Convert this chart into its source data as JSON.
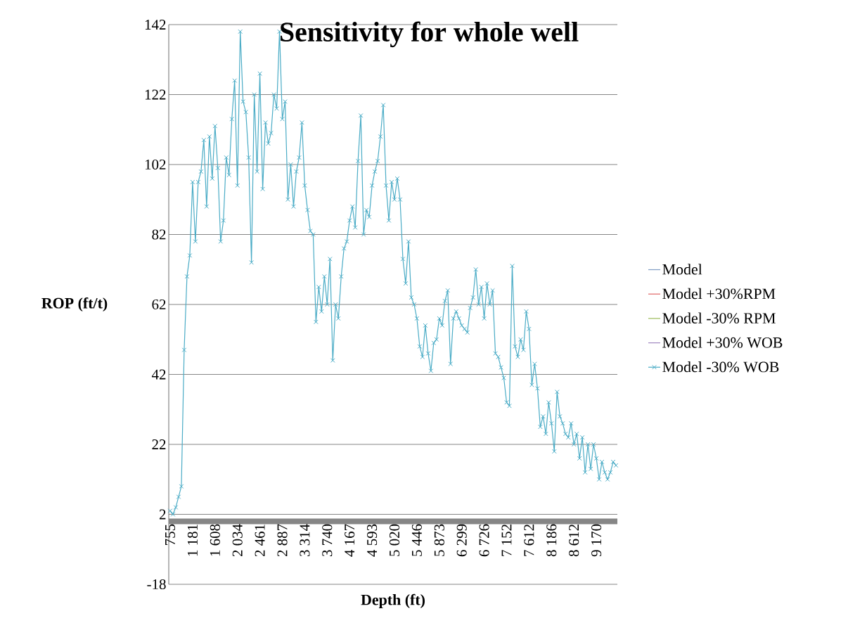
{
  "chart_data": {
    "type": "line",
    "title": "Sensitivity for whole well",
    "xlabel": "Depth (ft)",
    "ylabel": "ROP (ft/t)",
    "categories": [
      "755",
      null,
      null,
      null,
      null,
      null,
      null,
      null,
      "1 181",
      null,
      null,
      null,
      null,
      null,
      null,
      null,
      "1 608",
      null,
      null,
      null,
      null,
      null,
      null,
      null,
      "2 034",
      null,
      null,
      null,
      null,
      null,
      null,
      null,
      "2 461",
      null,
      null,
      null,
      null,
      null,
      null,
      null,
      "2 887",
      null,
      null,
      null,
      null,
      null,
      null,
      null,
      "3 314",
      null,
      null,
      null,
      null,
      null,
      null,
      null,
      "3 740",
      null,
      null,
      null,
      null,
      null,
      null,
      null,
      "4 167",
      null,
      null,
      null,
      null,
      null,
      null,
      null,
      "4 593",
      null,
      null,
      null,
      null,
      null,
      null,
      null,
      "5 020",
      null,
      null,
      null,
      null,
      null,
      null,
      null,
      "5 446",
      null,
      null,
      null,
      null,
      null,
      null,
      null,
      "5 873",
      null,
      null,
      null,
      null,
      null,
      null,
      null,
      "6 299",
      null,
      null,
      null,
      null,
      null,
      null,
      null,
      "6 726",
      null,
      null,
      null,
      null,
      null,
      null,
      null,
      "7 152",
      null,
      null,
      null,
      null,
      null,
      null,
      null,
      "7 612",
      null,
      null,
      null,
      null,
      null,
      null,
      null,
      "8 186",
      null,
      null,
      null,
      null,
      null,
      null,
      null,
      "8 612",
      null,
      null,
      null,
      null,
      null,
      null,
      null,
      "9 170",
      null,
      null,
      null,
      null,
      null,
      null,
      null
    ],
    "series": [
      {
        "name": "Model",
        "color": "#7f9cc4",
        "marker": "none",
        "values": [
          null,
          null,
          null,
          null,
          null,
          null,
          null,
          null,
          null,
          null,
          null,
          null,
          null,
          null,
          null,
          null,
          null,
          null,
          null,
          null,
          null,
          null,
          null,
          null,
          null,
          null,
          null,
          null,
          null,
          null,
          null,
          null,
          null,
          null,
          null,
          null,
          null,
          null,
          null,
          null,
          null,
          null,
          null,
          null,
          null,
          null,
          null,
          null,
          null,
          null,
          null,
          null,
          null,
          null,
          null,
          null,
          null,
          null,
          null,
          null,
          null,
          null,
          null,
          null,
          null,
          null,
          null,
          null,
          null,
          null,
          null,
          null,
          null,
          null,
          null,
          null,
          null,
          null,
          null,
          null,
          null,
          null,
          null,
          null,
          null,
          null,
          null,
          null,
          null,
          null,
          null,
          null,
          null,
          null,
          null,
          null,
          null,
          null,
          null,
          null,
          null,
          null,
          null,
          null,
          null,
          null,
          null,
          null,
          null,
          null,
          null,
          null,
          null,
          null,
          null,
          null,
          null,
          null,
          null,
          null,
          null,
          null,
          null,
          null,
          null,
          null,
          null,
          null,
          null,
          null,
          null,
          null,
          null,
          null,
          null,
          null,
          null,
          null,
          null,
          null,
          null,
          null,
          null,
          null,
          null,
          null,
          null,
          null,
          null,
          null,
          null,
          null,
          null,
          null,
          null,
          null,
          null,
          null,
          null,
          null
        ]
      },
      {
        "name": "Model +30%RPM",
        "color": "#e06666",
        "marker": "none",
        "values": [
          null,
          null,
          null,
          null,
          null,
          null,
          null,
          null,
          null,
          null,
          null,
          null,
          null,
          null,
          null,
          null,
          null,
          null,
          null,
          null,
          null,
          null,
          null,
          null,
          null,
          null,
          null,
          null,
          null,
          null,
          null,
          null,
          null,
          null,
          null,
          null,
          null,
          null,
          null,
          null,
          null,
          null,
          null,
          null,
          null,
          null,
          null,
          null,
          null,
          null,
          null,
          null,
          null,
          null,
          null,
          null,
          null,
          null,
          null,
          null,
          null,
          null,
          null,
          null,
          null,
          null,
          null,
          null,
          null,
          null,
          null,
          null,
          null,
          null,
          null,
          null,
          null,
          null,
          null,
          null,
          null,
          null,
          null,
          null,
          null,
          null,
          null,
          null,
          null,
          null,
          null,
          null,
          null,
          null,
          null,
          null,
          null,
          null,
          null,
          null,
          null,
          null,
          null,
          null,
          null,
          null,
          null,
          null,
          null,
          null,
          null,
          null,
          null,
          null,
          null,
          null,
          null,
          null,
          null,
          null,
          null,
          null,
          null,
          null,
          null,
          null,
          null,
          null,
          null,
          null,
          null,
          null,
          null,
          null,
          null,
          null,
          null,
          null,
          null,
          null,
          null,
          null,
          null,
          null,
          null,
          null,
          null,
          null,
          null,
          null,
          null,
          null,
          null,
          null,
          null,
          null,
          null,
          null,
          null,
          null
        ]
      },
      {
        "name": "Model -30% RPM",
        "color": "#9bbb59",
        "marker": "none",
        "values": [
          null,
          null,
          null,
          null,
          null,
          null,
          null,
          null,
          null,
          null,
          null,
          null,
          null,
          null,
          null,
          null,
          null,
          null,
          null,
          null,
          null,
          null,
          null,
          null,
          null,
          null,
          null,
          null,
          null,
          null,
          null,
          null,
          null,
          null,
          null,
          null,
          null,
          null,
          null,
          null,
          null,
          null,
          null,
          null,
          null,
          null,
          null,
          null,
          null,
          null,
          null,
          null,
          null,
          null,
          null,
          null,
          null,
          null,
          null,
          null,
          null,
          null,
          null,
          null,
          null,
          null,
          null,
          null,
          null,
          null,
          null,
          null,
          null,
          null,
          null,
          null,
          null,
          null,
          null,
          null,
          null,
          null,
          null,
          null,
          null,
          null,
          null,
          null,
          null,
          null,
          null,
          null,
          null,
          null,
          null,
          null,
          null,
          null,
          null,
          null,
          null,
          null,
          null,
          null,
          null,
          null,
          null,
          null,
          null,
          null,
          null,
          null,
          null,
          null,
          null,
          null,
          null,
          null,
          null,
          null,
          null,
          null,
          null,
          null,
          null,
          null,
          null,
          null,
          null,
          null,
          null,
          null,
          null,
          null,
          null,
          null,
          null,
          null,
          null,
          null,
          null,
          null,
          null,
          null,
          null,
          null,
          null,
          null,
          null,
          null,
          null,
          null,
          null,
          null,
          null,
          null,
          null,
          null,
          null,
          null
        ]
      },
      {
        "name": "Model +30% WOB",
        "color": "#9f86c0",
        "marker": "none",
        "values": [
          null,
          null,
          null,
          null,
          null,
          null,
          null,
          null,
          null,
          null,
          null,
          null,
          null,
          null,
          null,
          null,
          null,
          null,
          null,
          null,
          null,
          null,
          null,
          null,
          null,
          null,
          null,
          null,
          null,
          null,
          null,
          null,
          null,
          null,
          null,
          null,
          null,
          null,
          null,
          null,
          null,
          null,
          null,
          null,
          null,
          null,
          null,
          null,
          null,
          null,
          null,
          null,
          null,
          null,
          null,
          null,
          null,
          null,
          null,
          null,
          null,
          null,
          null,
          null,
          null,
          null,
          null,
          null,
          null,
          null,
          null,
          null,
          null,
          null,
          null,
          null,
          null,
          null,
          null,
          null,
          null,
          null,
          null,
          null,
          null,
          null,
          null,
          null,
          null,
          null,
          null,
          null,
          null,
          null,
          null,
          null,
          null,
          null,
          null,
          null,
          null,
          null,
          null,
          null,
          null,
          null,
          null,
          null,
          null,
          null,
          null,
          null,
          null,
          null,
          null,
          null,
          null,
          null,
          null,
          null,
          null,
          null,
          null,
          null,
          null,
          null,
          null,
          null,
          null,
          null,
          null,
          null,
          null,
          null,
          null,
          null,
          null,
          null,
          null,
          null,
          null,
          null,
          null,
          null,
          null,
          null,
          null,
          null,
          null,
          null,
          null,
          null,
          null,
          null,
          null,
          null,
          null,
          null,
          null,
          null
        ]
      },
      {
        "name": "Model -30% WOB",
        "color": "#4bacc6",
        "marker": "cross",
        "values": [
          3,
          2,
          4,
          7,
          10,
          49,
          70,
          76,
          97,
          80,
          97,
          100,
          109,
          90,
          110,
          98,
          113,
          101,
          80,
          86,
          104,
          99,
          115,
          126,
          96,
          140,
          120,
          117,
          104,
          74,
          122,
          100,
          128,
          95,
          114,
          108,
          111,
          122,
          118,
          140,
          115,
          120,
          92,
          102,
          90,
          100,
          104,
          114,
          96,
          89,
          83,
          82,
          57,
          67,
          60,
          70,
          62,
          75,
          46,
          62,
          58,
          70,
          78,
          80,
          86,
          90,
          84,
          103,
          116,
          82,
          89,
          87,
          96,
          100,
          103,
          110,
          119,
          96,
          86,
          97,
          92,
          98,
          92,
          75,
          68,
          80,
          64,
          62,
          58,
          50,
          47,
          56,
          48,
          43,
          51,
          52,
          58,
          56,
          63,
          66,
          45,
          58,
          60,
          58,
          56,
          55,
          54,
          61,
          64,
          72,
          62,
          67,
          58,
          68,
          62,
          66,
          48,
          47,
          44,
          41,
          34,
          33,
          73,
          50,
          47,
          52,
          49,
          60,
          55,
          39,
          45,
          38,
          27,
          30,
          25,
          34,
          28,
          20,
          37,
          30,
          28,
          25,
          24,
          28,
          22,
          25,
          18,
          24,
          14,
          22,
          15,
          22,
          18,
          12,
          17,
          14,
          12,
          14,
          17,
          16
        ]
      }
    ],
    "ylim": [
      -18,
      142
    ],
    "yticks": [
      -18,
      2,
      22,
      42,
      62,
      82,
      102,
      122,
      142
    ],
    "grid": "y",
    "legend": "right",
    "line_style": "solid"
  }
}
